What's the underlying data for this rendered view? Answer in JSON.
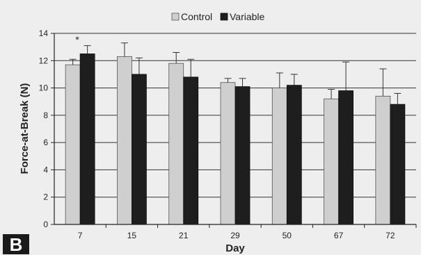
{
  "panel_label": "B",
  "colors": {
    "background": "#eeeeee",
    "control": "#cfcfcf",
    "variable": "#1e1e1e",
    "axis": "#222222"
  },
  "chart_data": {
    "type": "bar",
    "xlabel": "Day",
    "ylabel": "Force-at-Break (N)",
    "ylim": [
      0,
      14
    ],
    "yticks": [
      0,
      2,
      4,
      6,
      8,
      10,
      12,
      14
    ],
    "grid": true,
    "legend_position": "top",
    "categories": [
      "7",
      "15",
      "21",
      "29",
      "50",
      "67",
      "72"
    ],
    "series": [
      {
        "name": "Control",
        "values": [
          11.7,
          12.3,
          11.8,
          10.4,
          10.0,
          9.2,
          9.4
        ],
        "error": [
          0.4,
          1.0,
          0.8,
          0.3,
          1.1,
          0.7,
          2.0
        ]
      },
      {
        "name": "Variable",
        "values": [
          12.5,
          11.0,
          10.8,
          10.1,
          10.2,
          9.8,
          8.8
        ],
        "error": [
          0.6,
          1.2,
          1.3,
          0.6,
          0.8,
          2.1,
          0.8
        ]
      }
    ],
    "annotations": [
      {
        "category": "7",
        "text": "*"
      }
    ]
  }
}
